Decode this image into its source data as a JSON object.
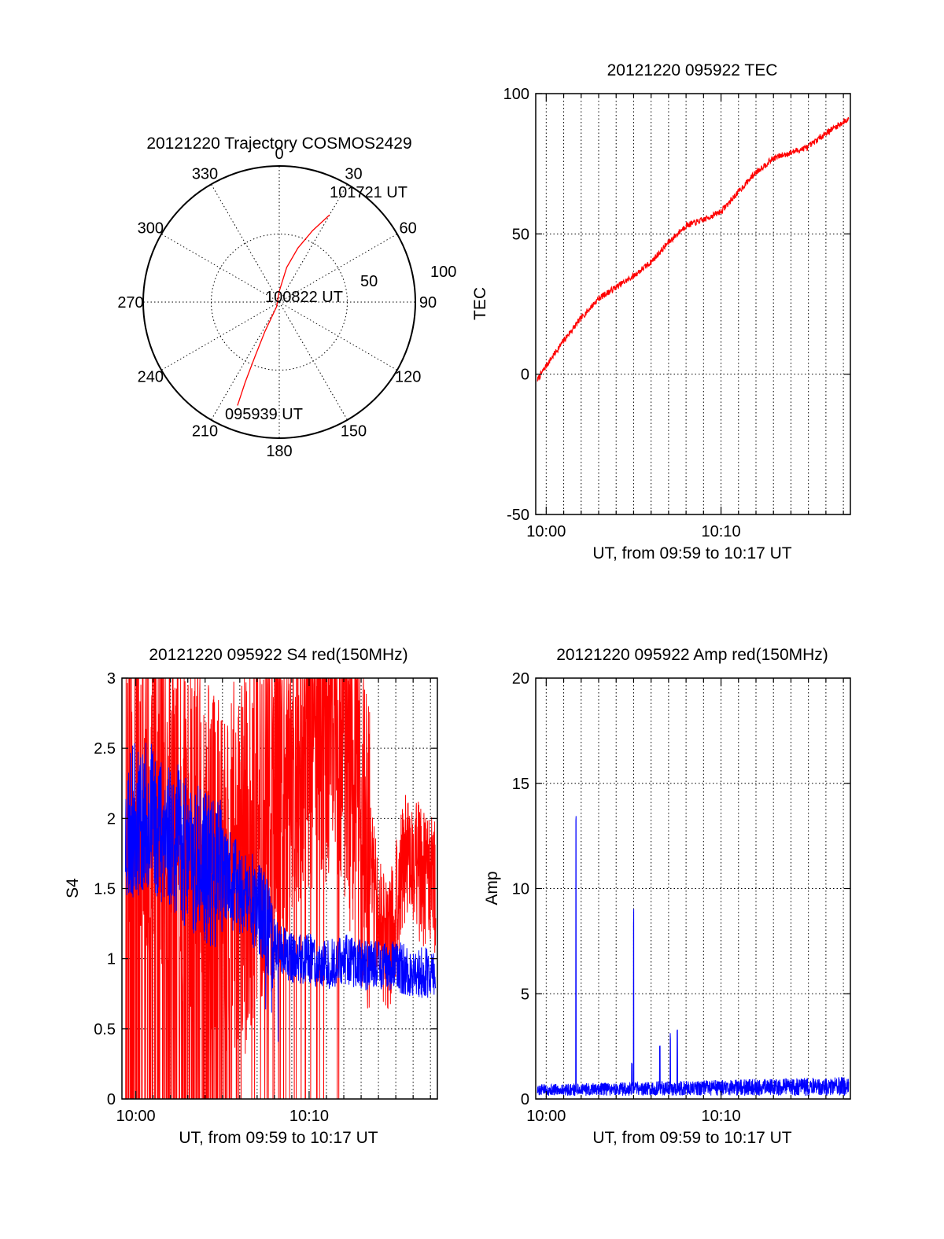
{
  "chart_data": [
    {
      "id": "trajectory",
      "type": "polar",
      "title": "20121220 Trajectory COSMOS2429",
      "azimuth_labels": [
        "0",
        "30",
        "60",
        "90",
        "120",
        "150",
        "180",
        "210",
        "240",
        "270",
        "300",
        "330"
      ],
      "radial_labels": [
        "50",
        "100"
      ],
      "annotations": [
        "101721 UT",
        "100822 UT",
        "095939 UT"
      ],
      "series": [
        {
          "color": "#ff0000",
          "points": [
            {
              "az": 30,
              "r": 74
            },
            {
              "az": 25,
              "r": 58
            },
            {
              "az": 19,
              "r": 42
            },
            {
              "az": 12,
              "r": 26
            },
            {
              "az": 0,
              "r": 8
            },
            {
              "az": 210,
              "r": 4
            },
            {
              "az": 206,
              "r": 24
            },
            {
              "az": 204,
              "r": 44
            },
            {
              "az": 203,
              "r": 64
            },
            {
              "az": 202,
              "r": 82
            }
          ]
        }
      ]
    },
    {
      "id": "tec",
      "type": "line",
      "title": "20121220 095922 TEC",
      "xlabel": "UT, from 09:59 to 10:17 UT",
      "ylabel": "TEC",
      "xtick_labels": [
        "10:00",
        "10:10"
      ],
      "xtick_values": [
        600,
        610
      ],
      "xlim": [
        599.4,
        617.4
      ],
      "ylim": [
        -50,
        100
      ],
      "ytick_values": [
        -50,
        0,
        50,
        100
      ],
      "series": [
        {
          "color": "#ff0000",
          "x": [
            599.5,
            600.0,
            601.0,
            602.0,
            603.0,
            604.0,
            605.0,
            606.0,
            607.0,
            608.0,
            609.0,
            610.0,
            611.0,
            612.0,
            613.0,
            614.0,
            615.0,
            616.0,
            617.3
          ],
          "y": [
            -2,
            3,
            12,
            20,
            27,
            31,
            35,
            40,
            47,
            53,
            55,
            58,
            65,
            72,
            77,
            79,
            81,
            86,
            91
          ]
        }
      ]
    },
    {
      "id": "s4",
      "type": "line",
      "title": "20121220 095922 S4 red(150MHz)",
      "xlabel": "UT, from 09:59 to 10:17 UT",
      "ylabel": "S4",
      "xtick_labels": [
        "10:00",
        "10:10"
      ],
      "xtick_values": [
        600,
        610
      ],
      "xlim": [
        599.2,
        617.4
      ],
      "ylim": [
        0,
        3
      ],
      "ytick_labels": [
        "0",
        "0.5",
        "1",
        "1.5",
        "2",
        "2.5",
        "3"
      ],
      "ytick_values": [
        0,
        0.5,
        1,
        1.5,
        2,
        2.5,
        3
      ],
      "series": [
        {
          "color": "#ff0000",
          "x": [
            599.4,
            600.5,
            601.5,
            602.5,
            603.5,
            604.5,
            605.5,
            606.5,
            607.5,
            608.5,
            609.5,
            610.5,
            611.5,
            612.5,
            613.5,
            614.5,
            615.5,
            616.5,
            617.3
          ],
          "y": [
            2.6,
            2.3,
            2.2,
            2.0,
            1.8,
            1.7,
            1.6,
            1.7,
            2.1,
            2.3,
            2.6,
            2.7,
            2.8,
            2.3,
            1.7,
            1.0,
            1.7,
            1.6,
            1.5
          ]
        },
        {
          "color": "#0000ff",
          "x": [
            599.4,
            600.0,
            601.0,
            602.0,
            603.0,
            604.0,
            605.0,
            606.0,
            607.0,
            608.0,
            609.0,
            610.0,
            611.0,
            612.0,
            613.0,
            614.0,
            615.0,
            616.0,
            617.3
          ],
          "y": [
            1.9,
            2.0,
            2.0,
            1.9,
            1.75,
            1.65,
            1.6,
            1.5,
            1.4,
            1.1,
            1.0,
            1.0,
            0.95,
            1.0,
            0.95,
            0.95,
            0.95,
            0.9,
            0.9
          ]
        }
      ]
    },
    {
      "id": "amp",
      "type": "line",
      "title": "20121220 095922 Amp red(150MHz)",
      "xlabel": "UT, from 09:59 to 10:17 UT",
      "ylabel": "Amp",
      "xtick_labels": [
        "10:00",
        "10:10"
      ],
      "xtick_values": [
        600,
        610
      ],
      "xlim": [
        599.4,
        617.4
      ],
      "ylim": [
        0,
        20
      ],
      "ytick_values": [
        0,
        5,
        10,
        15,
        20
      ],
      "series": [
        {
          "color": "#0000ff",
          "x": [
            599.5,
            601.6,
            601.7,
            601.8,
            604.6,
            604.9,
            605.0,
            605.1,
            605.4,
            606.5,
            606.6,
            607.1,
            607.2,
            607.5,
            607.6,
            610.0,
            613.0,
            617.3
          ],
          "y": [
            0.5,
            0.5,
            14.0,
            0.5,
            0.7,
            1.8,
            9.2,
            0.5,
            0.5,
            2.7,
            0.6,
            3.3,
            0.8,
            3.4,
            0.8,
            0.7,
            0.8,
            0.9
          ]
        }
      ]
    }
  ]
}
